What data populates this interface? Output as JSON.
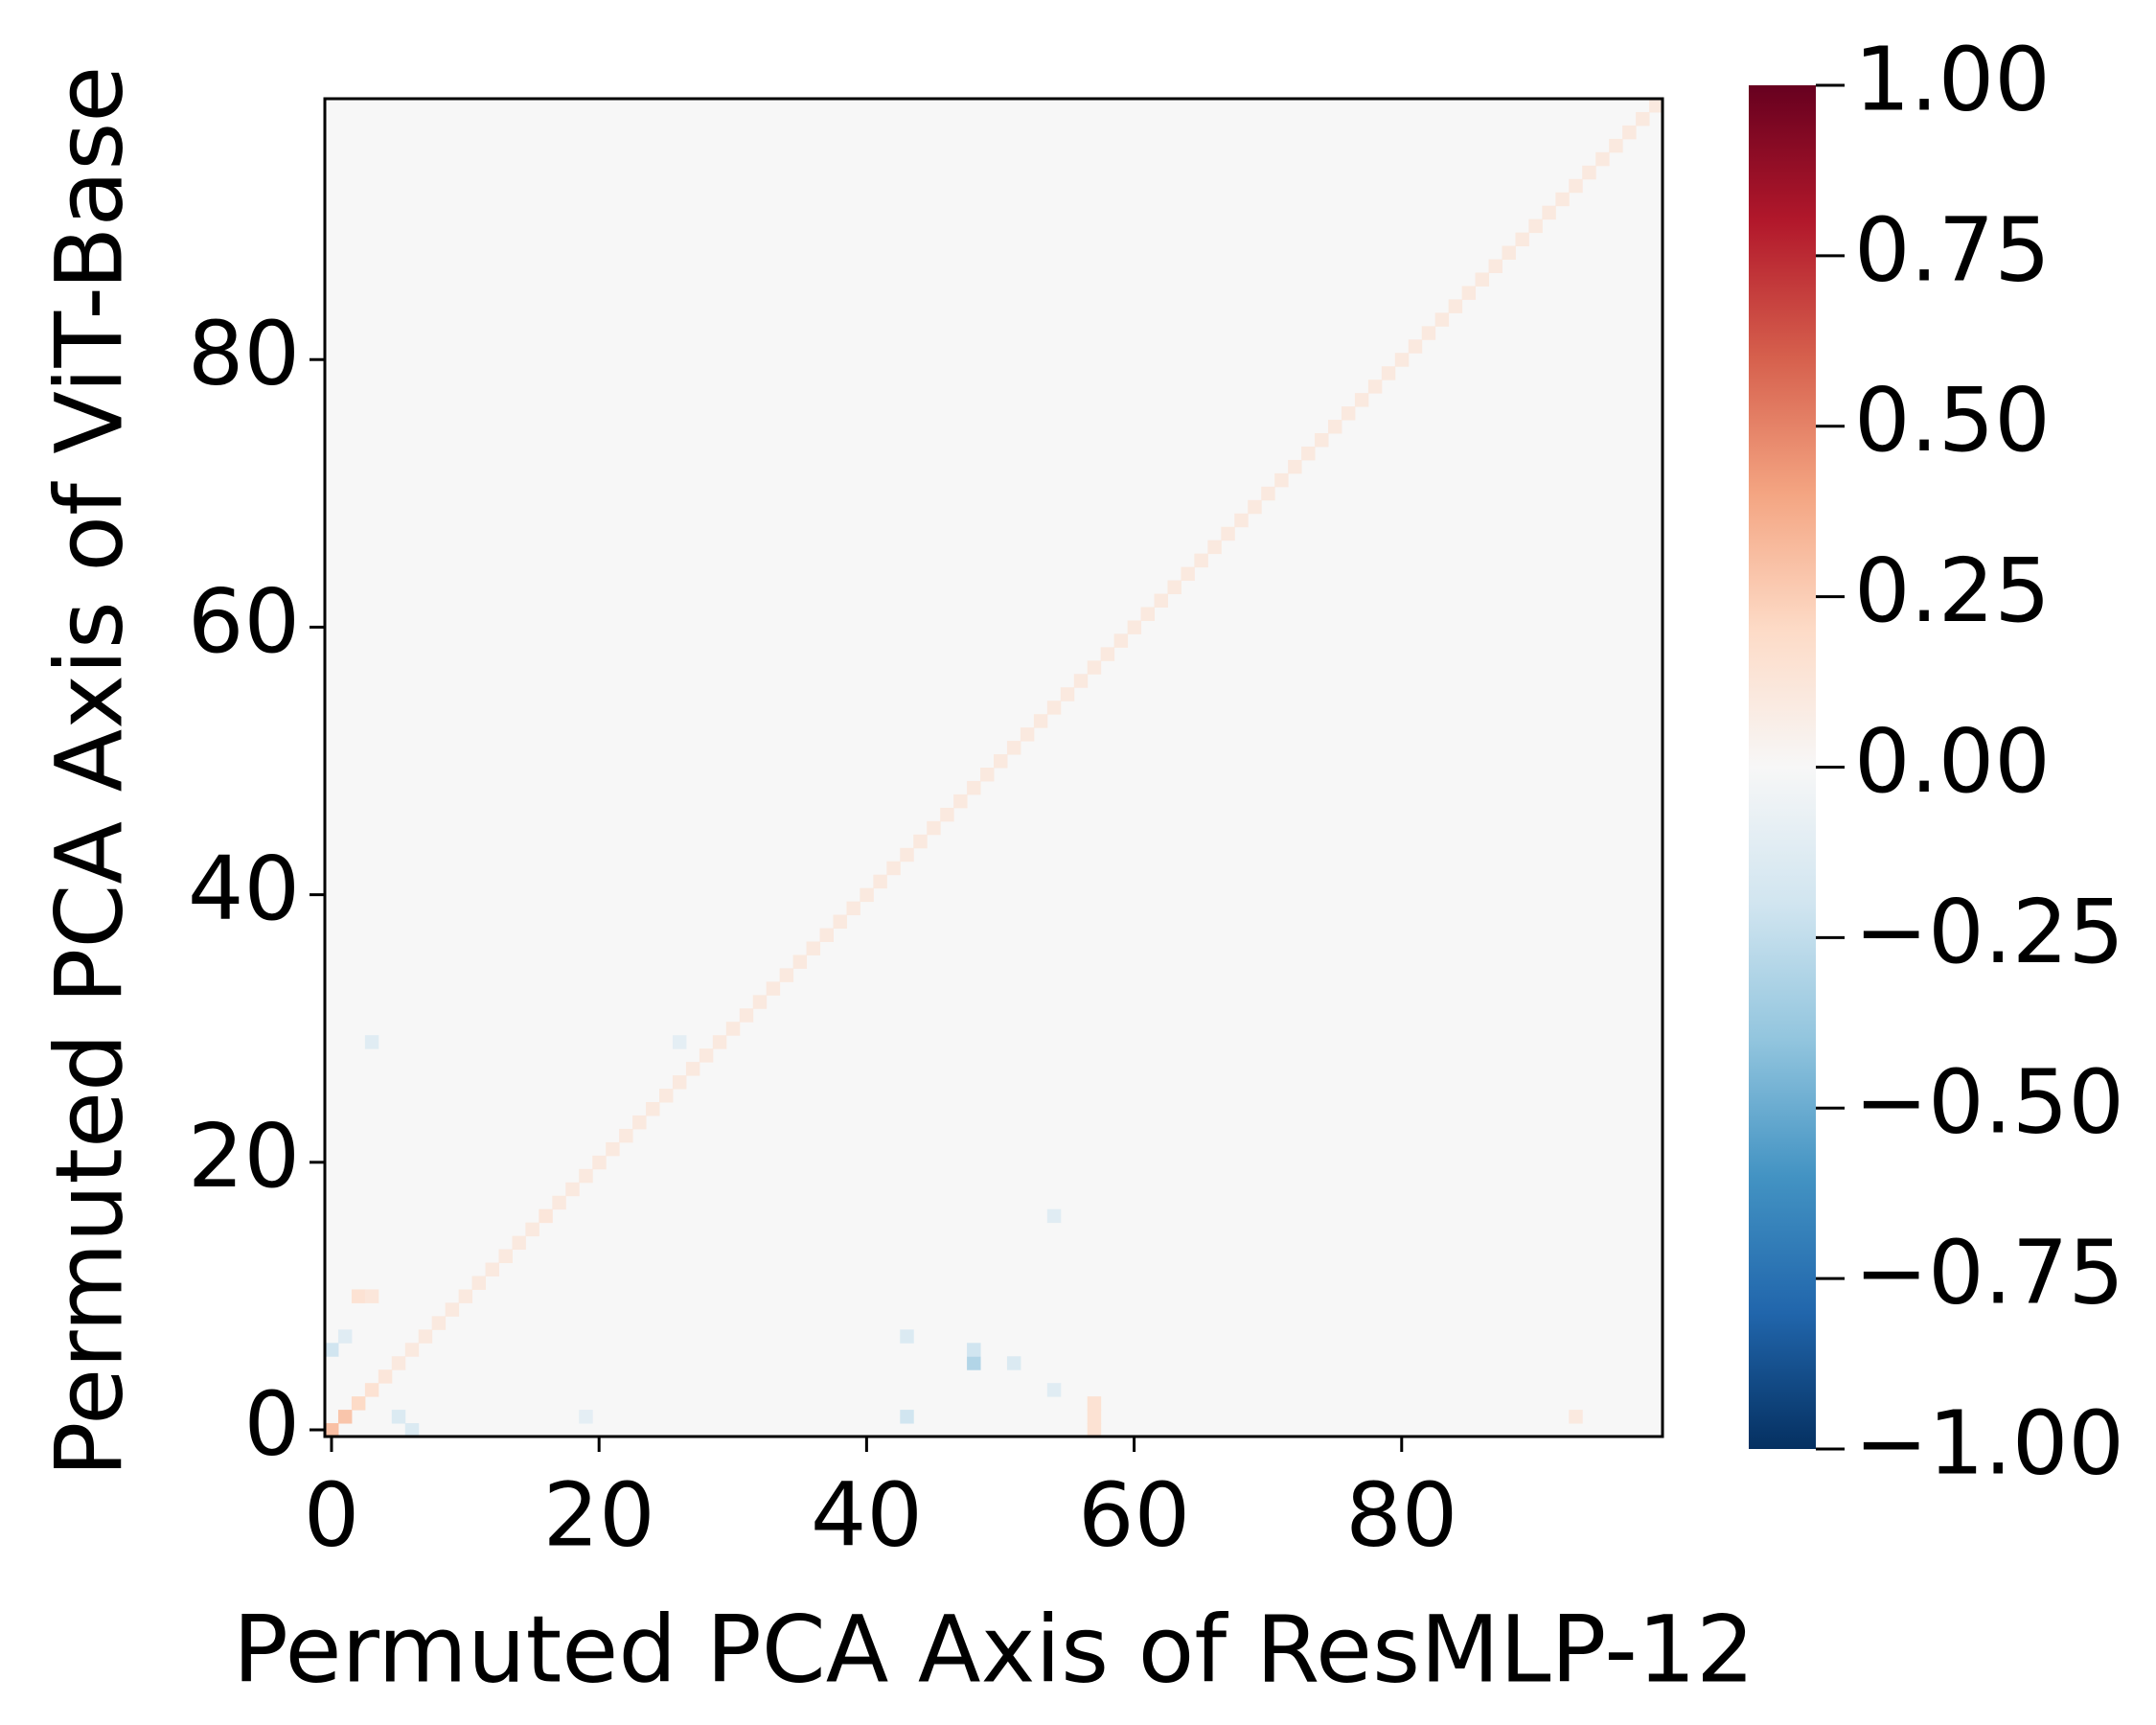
{
  "chart_data": {
    "type": "heatmap",
    "xlabel": "Permuted PCA Axis of ResMLP-12",
    "ylabel": "Permuted PCA Axis of ViT-Base",
    "colormap": "RdBu_r",
    "clim": [
      -1,
      1
    ],
    "xlim": [
      -0.5,
      99.5
    ],
    "ylim": [
      -0.5,
      99.5
    ],
    "xticks": [
      0,
      20,
      40,
      60,
      80
    ],
    "yticks": [
      0,
      20,
      40,
      60,
      80
    ],
    "cticks": [
      {
        "value": -1,
        "label": "−1.00"
      },
      {
        "value": -0.75,
        "label": "−0.75"
      },
      {
        "value": -0.5,
        "label": "−0.50"
      },
      {
        "value": -0.25,
        "label": "−0.25"
      },
      {
        "value": 0,
        "label": "0.00"
      },
      {
        "value": 0.25,
        "label": "0.25"
      },
      {
        "value": 0.5,
        "label": "0.50"
      },
      {
        "value": 0.75,
        "label": "0.75"
      },
      {
        "value": 1,
        "label": "1.00"
      }
    ],
    "cells": [
      [
        0,
        0,
        0.3
      ],
      [
        1,
        1,
        0.28
      ],
      [
        2,
        2,
        0.2
      ],
      [
        3,
        3,
        0.15
      ],
      [
        4,
        4,
        0.12
      ],
      [
        5,
        5,
        0.1
      ],
      [
        6,
        6,
        0.1
      ],
      [
        7,
        7,
        0.1
      ],
      [
        8,
        8,
        0.1
      ],
      [
        9,
        9,
        0.1
      ],
      [
        10,
        10,
        0.1
      ],
      [
        11,
        11,
        0.1
      ],
      [
        12,
        12,
        0.1
      ],
      [
        13,
        13,
        0.1
      ],
      [
        14,
        14,
        0.1
      ],
      [
        15,
        15,
        0.1
      ],
      [
        16,
        16,
        0.12
      ],
      [
        17,
        17,
        0.1
      ],
      [
        18,
        18,
        0.1
      ],
      [
        19,
        19,
        0.1
      ],
      [
        20,
        20,
        0.1
      ],
      [
        21,
        21,
        0.1
      ],
      [
        22,
        22,
        0.1
      ],
      [
        23,
        23,
        0.1
      ],
      [
        24,
        24,
        0.1
      ],
      [
        25,
        25,
        0.1
      ],
      [
        26,
        26,
        0.1
      ],
      [
        27,
        27,
        0.1
      ],
      [
        28,
        28,
        0.1
      ],
      [
        29,
        29,
        0.1
      ],
      [
        30,
        30,
        0.1
      ],
      [
        31,
        31,
        0.1
      ],
      [
        32,
        32,
        0.1
      ],
      [
        33,
        33,
        0.1
      ],
      [
        34,
        34,
        0.1
      ],
      [
        35,
        35,
        0.1
      ],
      [
        36,
        36,
        0.1
      ],
      [
        37,
        37,
        0.1
      ],
      [
        38,
        38,
        0.1
      ],
      [
        39,
        39,
        0.1
      ],
      [
        40,
        40,
        0.1
      ],
      [
        41,
        41,
        0.1
      ],
      [
        42,
        42,
        0.1
      ],
      [
        43,
        43,
        0.1
      ],
      [
        44,
        44,
        0.1
      ],
      [
        45,
        45,
        0.1
      ],
      [
        46,
        46,
        0.1
      ],
      [
        47,
        47,
        0.1
      ],
      [
        48,
        48,
        0.1
      ],
      [
        49,
        49,
        0.1
      ],
      [
        50,
        50,
        0.1
      ],
      [
        51,
        51,
        0.1
      ],
      [
        52,
        52,
        0.1
      ],
      [
        53,
        53,
        0.1
      ],
      [
        54,
        54,
        0.1
      ],
      [
        55,
        55,
        0.1
      ],
      [
        56,
        56,
        0.1
      ],
      [
        57,
        57,
        0.1
      ],
      [
        58,
        58,
        0.1
      ],
      [
        59,
        59,
        0.1
      ],
      [
        60,
        60,
        0.1
      ],
      [
        61,
        61,
        0.1
      ],
      [
        62,
        62,
        0.1
      ],
      [
        63,
        63,
        0.1
      ],
      [
        64,
        64,
        0.1
      ],
      [
        65,
        65,
        0.1
      ],
      [
        66,
        66,
        0.1
      ],
      [
        67,
        67,
        0.1
      ],
      [
        68,
        68,
        0.1
      ],
      [
        69,
        69,
        0.1
      ],
      [
        70,
        70,
        0.1
      ],
      [
        71,
        71,
        0.1
      ],
      [
        72,
        72,
        0.1
      ],
      [
        73,
        73,
        0.1
      ],
      [
        74,
        74,
        0.1
      ],
      [
        75,
        75,
        0.1
      ],
      [
        76,
        76,
        0.1
      ],
      [
        77,
        77,
        0.1
      ],
      [
        78,
        78,
        0.1
      ],
      [
        79,
        79,
        0.1
      ],
      [
        80,
        80,
        0.1
      ],
      [
        81,
        81,
        0.1
      ],
      [
        82,
        82,
        0.1
      ],
      [
        83,
        83,
        0.1
      ],
      [
        84,
        84,
        0.1
      ],
      [
        85,
        85,
        0.1
      ],
      [
        86,
        86,
        0.1
      ],
      [
        87,
        87,
        0.1
      ],
      [
        88,
        88,
        0.1
      ],
      [
        89,
        89,
        0.1
      ],
      [
        90,
        90,
        0.1
      ],
      [
        91,
        91,
        0.1
      ],
      [
        92,
        92,
        0.1
      ],
      [
        93,
        93,
        0.1
      ],
      [
        94,
        94,
        0.1
      ],
      [
        95,
        95,
        0.1
      ],
      [
        96,
        96,
        0.1
      ],
      [
        97,
        97,
        0.1
      ],
      [
        98,
        98,
        0.1
      ],
      [
        99,
        99,
        0.1
      ],
      [
        48,
        5,
        -0.3
      ],
      [
        48,
        6,
        -0.2
      ],
      [
        43,
        1,
        -0.2
      ],
      [
        43,
        7,
        -0.15
      ],
      [
        51,
        5,
        -0.15
      ],
      [
        54,
        16,
        -0.12
      ],
      [
        54,
        3,
        -0.12
      ],
      [
        57,
        0,
        0.15
      ],
      [
        57,
        1,
        0.15
      ],
      [
        57,
        2,
        0.15
      ],
      [
        5,
        1,
        -0.15
      ],
      [
        6,
        0,
        -0.15
      ],
      [
        0,
        6,
        -0.2
      ],
      [
        1,
        7,
        -0.12
      ],
      [
        2,
        10,
        0.15
      ],
      [
        3,
        10,
        0.12
      ],
      [
        26,
        29,
        -0.1
      ],
      [
        3,
        29,
        -0.12
      ],
      [
        19,
        1,
        -0.1
      ],
      [
        93,
        1,
        0.1
      ]
    ]
  }
}
